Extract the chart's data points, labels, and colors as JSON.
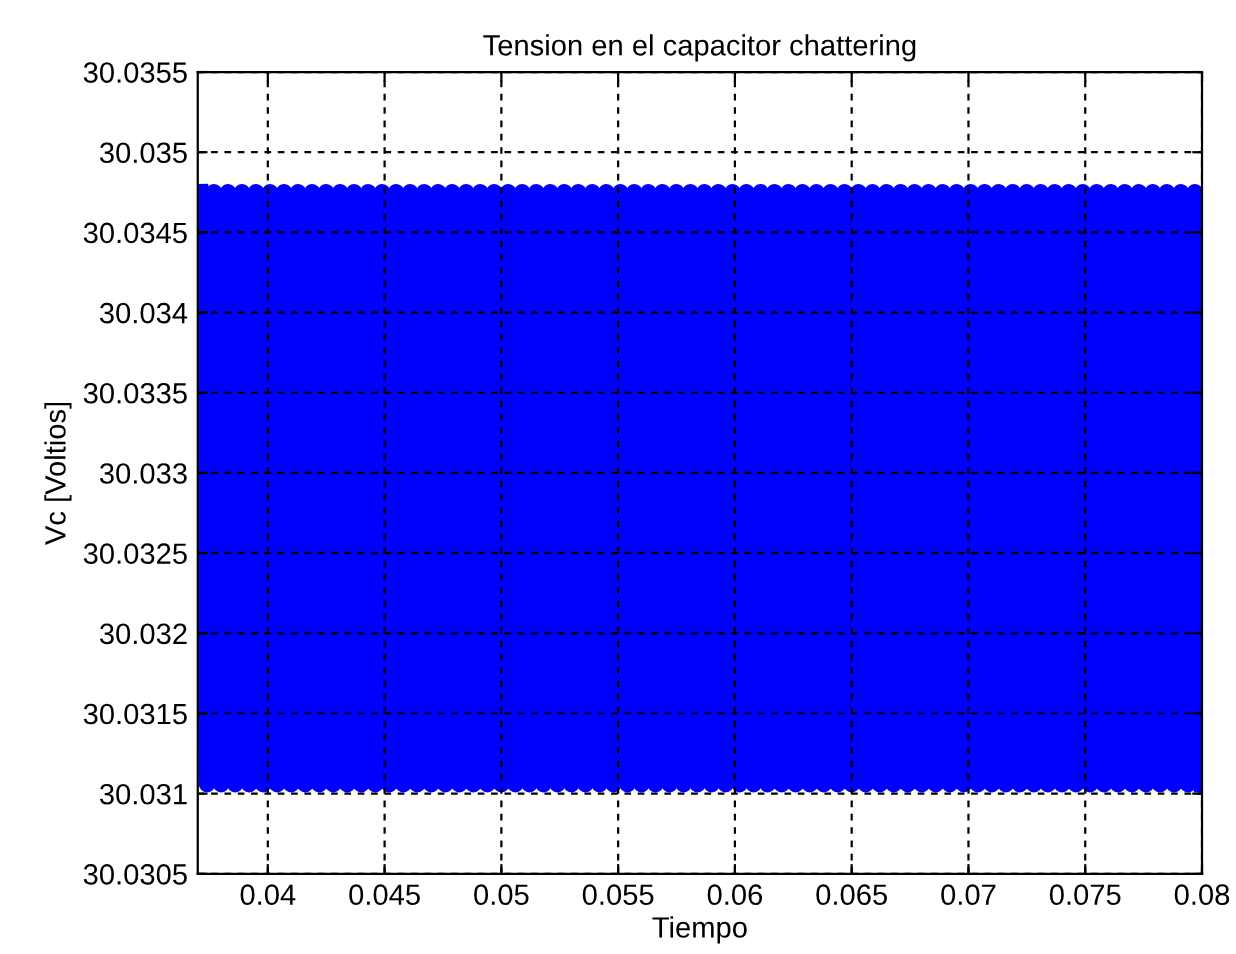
{
  "chart_data": {
    "type": "line",
    "title": "Tension en el capacitor chattering",
    "xlabel": "Tiempo",
    "ylabel": "Vc [Voltios]",
    "xlim": [
      0.037,
      0.08
    ],
    "xticks": [
      0.04,
      0.045,
      0.05,
      0.055,
      0.06,
      0.065,
      0.07,
      0.075,
      0.08
    ],
    "ylim": [
      30.0305,
      30.0355
    ],
    "yticks": [
      30.0305,
      30.031,
      30.0315,
      30.032,
      30.0325,
      30.033,
      30.0335,
      30.034,
      30.0345,
      30.035,
      30.0355
    ],
    "grid": true,
    "line_style": "solid",
    "marker": "none",
    "series": [
      {
        "color": "#0000ff",
        "x": [
          0.0371,
          0.0374,
          0.0377,
          0.038,
          0.0383,
          0.0386,
          0.0389,
          0.0392,
          0.0395,
          0.0398,
          0.0401,
          0.0404,
          0.0407,
          0.041,
          0.0413,
          0.0416,
          0.0419,
          0.0422,
          0.0425,
          0.0428,
          0.0431,
          0.0434,
          0.0437,
          0.044,
          0.0443,
          0.0446,
          0.0449,
          0.0452,
          0.0455,
          0.0458,
          0.0461,
          0.0464,
          0.0467,
          0.047,
          0.0473,
          0.0476,
          0.0479,
          0.0482,
          0.0485,
          0.0488,
          0.0491,
          0.0494,
          0.0497,
          0.05,
          0.0503,
          0.0506,
          0.0509,
          0.0512,
          0.0515,
          0.0518,
          0.0521,
          0.0524,
          0.0527,
          0.053,
          0.0533,
          0.0536,
          0.0539,
          0.0542,
          0.0545,
          0.0548,
          0.0551,
          0.0554,
          0.0557,
          0.056,
          0.0563,
          0.0566,
          0.0569,
          0.0572,
          0.0575,
          0.0578,
          0.0581,
          0.0584,
          0.0587,
          0.059,
          0.0593,
          0.0596,
          0.0599,
          0.0602,
          0.0605,
          0.0608,
          0.0611,
          0.0614,
          0.0617,
          0.062,
          0.0623,
          0.0626,
          0.0629,
          0.0632,
          0.0635,
          0.0638,
          0.0641,
          0.0644,
          0.0647,
          0.065,
          0.0653,
          0.0656,
          0.0659,
          0.0662,
          0.0665,
          0.0668,
          0.0671,
          0.0674,
          0.0677,
          0.068,
          0.0683,
          0.0686,
          0.0689,
          0.0692,
          0.0695,
          0.0698,
          0.0701,
          0.0704,
          0.0707,
          0.071,
          0.0713,
          0.0716,
          0.0719,
          0.0722,
          0.0725,
          0.0728,
          0.0731,
          0.0734,
          0.0737,
          0.074,
          0.0743,
          0.0746,
          0.0749,
          0.0752,
          0.0755,
          0.0758,
          0.0761,
          0.0764,
          0.0767,
          0.077,
          0.0773,
          0.0776,
          0.0779,
          0.0782,
          0.0785,
          0.0788,
          0.0791,
          0.0794,
          0.0797,
          0.08
        ],
        "values": [
          30.03475,
          30.03106,
          30.03475,
          30.03106,
          30.03475,
          30.03106,
          30.03475,
          30.03106,
          30.03475,
          30.03106,
          30.03475,
          30.03106,
          30.03475,
          30.03106,
          30.03475,
          30.03106,
          30.03475,
          30.03106,
          30.03475,
          30.03106,
          30.03475,
          30.03106,
          30.03475,
          30.03106,
          30.03475,
          30.03106,
          30.03475,
          30.03106,
          30.03475,
          30.03106,
          30.03475,
          30.03106,
          30.03475,
          30.03106,
          30.03475,
          30.03106,
          30.03475,
          30.03106,
          30.03475,
          30.03106,
          30.03475,
          30.03106,
          30.03475,
          30.03106,
          30.03475,
          30.03106,
          30.03475,
          30.03106,
          30.03475,
          30.03106,
          30.03475,
          30.03106,
          30.03475,
          30.03106,
          30.03475,
          30.03106,
          30.03475,
          30.03106,
          30.03475,
          30.03106,
          30.03475,
          30.03106,
          30.03475,
          30.03106,
          30.03475,
          30.03106,
          30.03475,
          30.03106,
          30.03475,
          30.03106,
          30.03475,
          30.03106,
          30.03475,
          30.03106,
          30.03475,
          30.03106,
          30.03475,
          30.03106,
          30.03475,
          30.03106,
          30.03475,
          30.03106,
          30.03475,
          30.03106,
          30.03475,
          30.03106,
          30.03475,
          30.03106,
          30.03475,
          30.03106,
          30.03475,
          30.03106,
          30.03475,
          30.03106,
          30.03475,
          30.03106,
          30.03475,
          30.03106,
          30.03475,
          30.03106,
          30.03475,
          30.03106,
          30.03475,
          30.03106,
          30.03475,
          30.03106,
          30.03475,
          30.03106,
          30.03475,
          30.03106,
          30.03475,
          30.03106,
          30.03475,
          30.03106,
          30.03475,
          30.03106,
          30.03475,
          30.03106,
          30.03475,
          30.03106,
          30.03475,
          30.03106,
          30.03475,
          30.03106,
          30.03475,
          30.03106,
          30.03475,
          30.03106,
          30.03475,
          30.03106,
          30.03475,
          30.03106,
          30.03475,
          30.03106,
          30.03475,
          30.03106,
          30.03475,
          30.03106,
          30.03475,
          30.03106,
          30.03475,
          30.03106,
          30.03475,
          30.03106
        ]
      }
    ]
  }
}
